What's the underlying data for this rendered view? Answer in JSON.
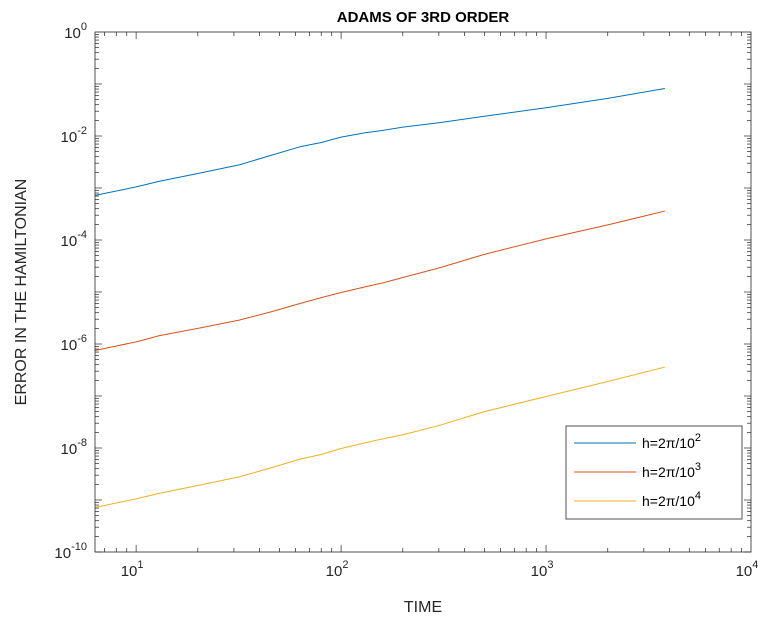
{
  "chart_data": {
    "type": "line",
    "title": "ADAMS OF 3RD ORDER",
    "xlabel": "TIME",
    "ylabel": "ERROR IN THE HAMILTONIAN",
    "x_scale": "log",
    "y_scale": "log",
    "xlim": [
      6.3,
      10000
    ],
    "ylim": [
      1e-10,
      1
    ],
    "x_ticks": [
      {
        "base": "10",
        "exp": "1"
      },
      {
        "base": "10",
        "exp": "2"
      },
      {
        "base": "10",
        "exp": "3"
      },
      {
        "base": "10",
        "exp": "4"
      }
    ],
    "y_ticks": [
      {
        "base": "10",
        "exp": "0"
      },
      {
        "base": "10",
        "exp": "-2"
      },
      {
        "base": "10",
        "exp": "-4"
      },
      {
        "base": "10",
        "exp": "-6"
      },
      {
        "base": "10",
        "exp": "-8"
      },
      {
        "base": "10",
        "exp": "-10"
      }
    ],
    "grid": false,
    "legend_position": "bottom-right",
    "series": [
      {
        "name": "h=2π/10",
        "name_exp": "2",
        "color": "#0072BD",
        "x": [
          6.3,
          10,
          13,
          20,
          32,
          45,
          63,
          80,
          100,
          130,
          160,
          200,
          300,
          500,
          1000,
          2000,
          3800
        ],
        "y": [
          0.00072,
          0.00105,
          0.00135,
          0.0019,
          0.0028,
          0.0042,
          0.0062,
          0.0075,
          0.0095,
          0.0115,
          0.0128,
          0.0148,
          0.018,
          0.024,
          0.035,
          0.053,
          0.082
        ]
      },
      {
        "name": "h=2π/10",
        "name_exp": "3",
        "color": "#D95319",
        "x": [
          6.3,
          10,
          13,
          20,
          32,
          45,
          63,
          80,
          100,
          130,
          160,
          200,
          300,
          500,
          1000,
          2000,
          3800
        ],
        "y": [
          7.5e-07,
          1.1e-06,
          1.45e-06,
          2e-06,
          2.9e-06,
          4.1e-06,
          6e-06,
          7.8e-06,
          9.8e-06,
          1.25e-05,
          1.5e-05,
          1.9e-05,
          2.9e-05,
          5.3e-05,
          0.000105,
          0.000195,
          0.00036
        ]
      },
      {
        "name": "h=2π/10",
        "name_exp": "4",
        "color": "#EDB120",
        "x": [
          6.3,
          10,
          13,
          20,
          32,
          45,
          63,
          80,
          100,
          130,
          160,
          200,
          300,
          500,
          1000,
          2000,
          3800
        ],
        "y": [
          7.2e-10,
          1.05e-09,
          1.35e-09,
          1.9e-09,
          2.8e-09,
          4.1e-09,
          6.1e-09,
          7.5e-09,
          9.8e-09,
          1.25e-08,
          1.5e-08,
          1.8e-08,
          2.7e-08,
          5e-08,
          9.8e-08,
          1.9e-07,
          3.6e-07
        ]
      }
    ]
  }
}
